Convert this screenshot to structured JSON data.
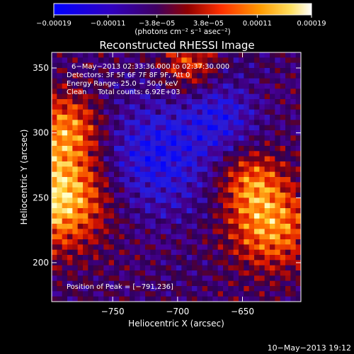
{
  "chart_data": {
    "type": "heatmap",
    "title": "Reconstructed RHESSI Image",
    "xlabel": "Heliocentric X (arcsec)",
    "ylabel": "Heliocentric Y (arcsec)",
    "xlim": [
      -797,
      -605
    ],
    "ylim": [
      170,
      362
    ],
    "x_ticks": [
      -750,
      -700,
      -650
    ],
    "y_ticks": [
      200,
      250,
      300,
      350
    ],
    "x_tick_labels": [
      "−750",
      "−700",
      "−650"
    ],
    "y_tick_labels": [
      "200",
      "250",
      "300",
      "350"
    ],
    "colorbar": {
      "label": "(photons cm⁻² s⁻¹ asec⁻²)",
      "range": [
        -0.00019,
        0.00019
      ],
      "tick_values": [
        -0.00019,
        -0.00011,
        -3.8e-05,
        3.8e-05,
        0.00011,
        0.00019
      ],
      "tick_labels": [
        "−0.00019",
        "−0.00011",
        "−3.8e−05",
        "3.8e−05",
        "0.00011",
        "0.00019"
      ]
    },
    "annotations": [
      "6−May−2013 02:33:36.000 to 02:37:30.000",
      "Detectors: 3F 5F 6F 7F 8F 9F, Att 0",
      "Energy Range: 25.0 − 50.0 keV",
      "Clean     Total counts: 6.92E+03"
    ],
    "peak_label": "Position of Peak = [−791,236]",
    "peak_position": [
      -791,
      236
    ],
    "date_stamp": "10−May−2013 19:12",
    "colors": {
      "colormap": [
        "#0000ff",
        "#5500a0",
        "#3a0070",
        "#6a0070",
        "#c00000",
        "#ff5000",
        "#ffb000",
        "#ffff80",
        "#ffffff"
      ]
    }
  }
}
